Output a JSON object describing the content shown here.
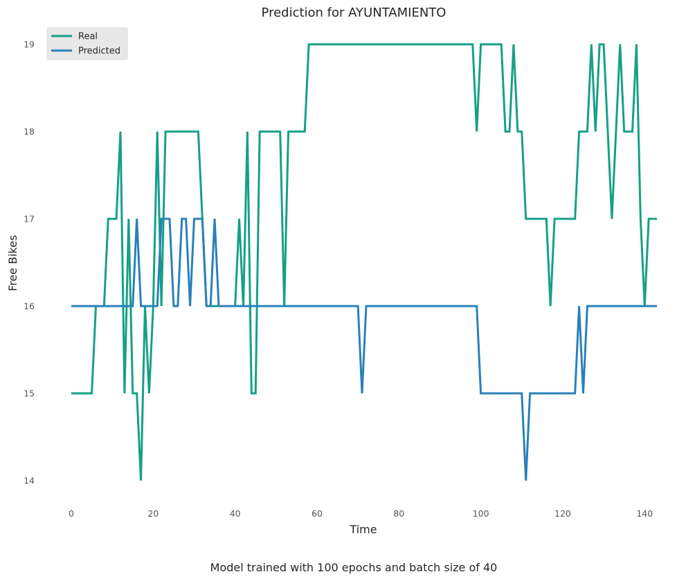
{
  "chart_data": {
    "type": "line",
    "title": "Prediction for AYUNTAMIENTO",
    "xlabel": "Time",
    "ylabel": "Free Bikes",
    "caption": "Model trained with 100 epochs and batch size of 40",
    "xlim": [
      -2.5,
      144
    ],
    "ylim": [
      13.7,
      19.2
    ],
    "xticks": [
      0,
      20,
      40,
      60,
      80,
      100,
      120,
      140
    ],
    "yticks": [
      14,
      15,
      16,
      17,
      18,
      19
    ],
    "grid": false,
    "legend_position": "top-left",
    "series": [
      {
        "name": "Real",
        "color": "#16a085",
        "points": [
          [
            0,
            15
          ],
          [
            5,
            15
          ],
          [
            6,
            16
          ],
          [
            8,
            16
          ],
          [
            9,
            17
          ],
          [
            11,
            17
          ],
          [
            12,
            18
          ],
          [
            13,
            15
          ],
          [
            14,
            17
          ],
          [
            15,
            15
          ],
          [
            16,
            15
          ],
          [
            17,
            14
          ],
          [
            18,
            16
          ],
          [
            19,
            15
          ],
          [
            20,
            16
          ],
          [
            21,
            18
          ],
          [
            22,
            16
          ],
          [
            23,
            18
          ],
          [
            31,
            18
          ],
          [
            32,
            17
          ],
          [
            33,
            16
          ],
          [
            40,
            16
          ],
          [
            41,
            17
          ],
          [
            42,
            16
          ],
          [
            43,
            18
          ],
          [
            44,
            15
          ],
          [
            45,
            15
          ],
          [
            46,
            18
          ],
          [
            51,
            18
          ],
          [
            52,
            16
          ],
          [
            53,
            18
          ],
          [
            57,
            18
          ],
          [
            58,
            19
          ],
          [
            98,
            19
          ],
          [
            99,
            18
          ],
          [
            100,
            19
          ],
          [
            105,
            19
          ],
          [
            106,
            18
          ],
          [
            107,
            18
          ],
          [
            108,
            19
          ],
          [
            109,
            18
          ],
          [
            110,
            18
          ],
          [
            111,
            17
          ],
          [
            116,
            17
          ],
          [
            117,
            16
          ],
          [
            118,
            17
          ],
          [
            123,
            17
          ],
          [
            124,
            18
          ],
          [
            126,
            18
          ],
          [
            127,
            19
          ],
          [
            128,
            18
          ],
          [
            129,
            19
          ],
          [
            130,
            19
          ],
          [
            132,
            17
          ],
          [
            134,
            19
          ],
          [
            135,
            18
          ],
          [
            137,
            18
          ],
          [
            138,
            19
          ],
          [
            139,
            17
          ],
          [
            140,
            16
          ],
          [
            141,
            17
          ],
          [
            143,
            17
          ]
        ]
      },
      {
        "name": "Predicted",
        "color": "#2980b9",
        "points": [
          [
            0,
            16
          ],
          [
            15,
            16
          ],
          [
            16,
            17
          ],
          [
            17,
            16
          ],
          [
            21,
            16
          ],
          [
            22,
            17
          ],
          [
            24,
            17
          ],
          [
            25,
            16
          ],
          [
            26,
            16
          ],
          [
            27,
            17
          ],
          [
            28,
            17
          ],
          [
            29,
            16
          ],
          [
            30,
            17
          ],
          [
            32,
            17
          ],
          [
            33,
            16
          ],
          [
            34,
            16
          ],
          [
            35,
            17
          ],
          [
            36,
            16
          ],
          [
            70,
            16
          ],
          [
            71,
            15
          ],
          [
            72,
            16
          ],
          [
            99,
            16
          ],
          [
            100,
            15
          ],
          [
            110,
            15
          ],
          [
            111,
            14
          ],
          [
            112,
            15
          ],
          [
            123,
            15
          ],
          [
            124,
            16
          ],
          [
            125,
            15
          ],
          [
            126,
            16
          ],
          [
            143,
            16
          ]
        ]
      }
    ]
  }
}
